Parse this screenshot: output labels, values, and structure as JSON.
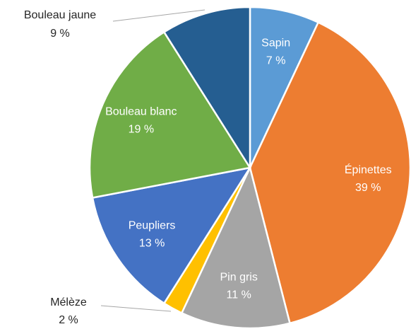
{
  "chart_data": {
    "type": "pie",
    "categories": [
      "Sapin",
      "Épinettes",
      "Pin gris",
      "Mélèze",
      "Peupliers",
      "Bouleau blanc",
      "Bouleau jaune"
    ],
    "values": [
      7,
      39,
      11,
      2,
      13,
      19,
      9
    ],
    "value_labels": [
      "7 %",
      "39 %",
      "11 %",
      "2 %",
      "13 %",
      "19 %",
      "9 %"
    ],
    "colors": [
      "#5b9bd5",
      "#ed7d31",
      "#a5a5a5",
      "#ffc000",
      "#4472c4",
      "#70ad47",
      "#255e91"
    ]
  }
}
